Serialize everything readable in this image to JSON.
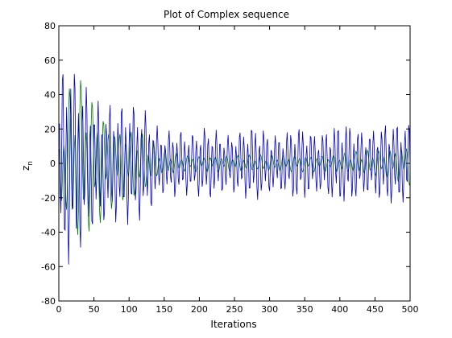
{
  "chart_data": {
    "type": "line",
    "title": "Plot of Complex sequence",
    "xlabel": "Iterations",
    "ylabel": "z",
    "ylabel_subscript": "n",
    "xlim": [
      0,
      500
    ],
    "ylim": [
      -80,
      80
    ],
    "xticks": [
      0,
      50,
      100,
      150,
      200,
      250,
      300,
      350,
      400,
      450,
      500
    ],
    "yticks": [
      -80,
      -60,
      -40,
      -20,
      0,
      20,
      40,
      60,
      80
    ],
    "grid": false,
    "legend": "none",
    "series": [
      {
        "color": "#008000",
        "x": [
          0,
          10,
          20,
          30,
          40,
          50,
          60,
          70,
          80,
          90,
          100,
          110,
          120,
          130,
          140,
          150,
          160,
          170,
          180,
          190,
          200,
          210,
          220,
          230,
          240,
          250,
          260,
          270,
          280,
          290,
          300,
          310,
          320,
          330,
          340,
          350,
          360,
          370,
          380,
          390,
          400,
          410,
          420,
          430,
          440,
          450,
          460,
          470,
          480,
          490,
          500
        ],
        "envelope": [
          30,
          38,
          50,
          52,
          45,
          40,
          35,
          28,
          25,
          22,
          22,
          20,
          18,
          14,
          10,
          8,
          7,
          6,
          5,
          5,
          5,
          5,
          5,
          5,
          5,
          5,
          5,
          5,
          5,
          5,
          5,
          5,
          5,
          5,
          5,
          5,
          5,
          5,
          5,
          5,
          6,
          6,
          7,
          7,
          8,
          8,
          8,
          9,
          10,
          12,
          13
        ]
      },
      {
        "color": "#0000cc",
        "x": [
          0,
          10,
          20,
          30,
          40,
          50,
          60,
          70,
          80,
          90,
          100,
          110,
          120,
          130,
          140,
          150,
          160,
          170,
          180,
          190,
          200,
          210,
          220,
          230,
          240,
          250,
          260,
          270,
          280,
          290,
          300,
          310,
          320,
          330,
          340,
          350,
          360,
          370,
          380,
          390,
          400,
          410,
          420,
          430,
          440,
          450,
          460,
          470,
          480,
          490,
          500
        ],
        "envelope": [
          55,
          62,
          58,
          52,
          45,
          38,
          36,
          35,
          35,
          35,
          36,
          35,
          33,
          28,
          22,
          18,
          20,
          20,
          19,
          18,
          20,
          22,
          21,
          18,
          17,
          18,
          20,
          22,
          23,
          21,
          18,
          17,
          18,
          21,
          23,
          22,
          19,
          18,
          20,
          23,
          25,
          25,
          23,
          20,
          19,
          21,
          24,
          25,
          25,
          24,
          25
        ]
      }
    ]
  }
}
